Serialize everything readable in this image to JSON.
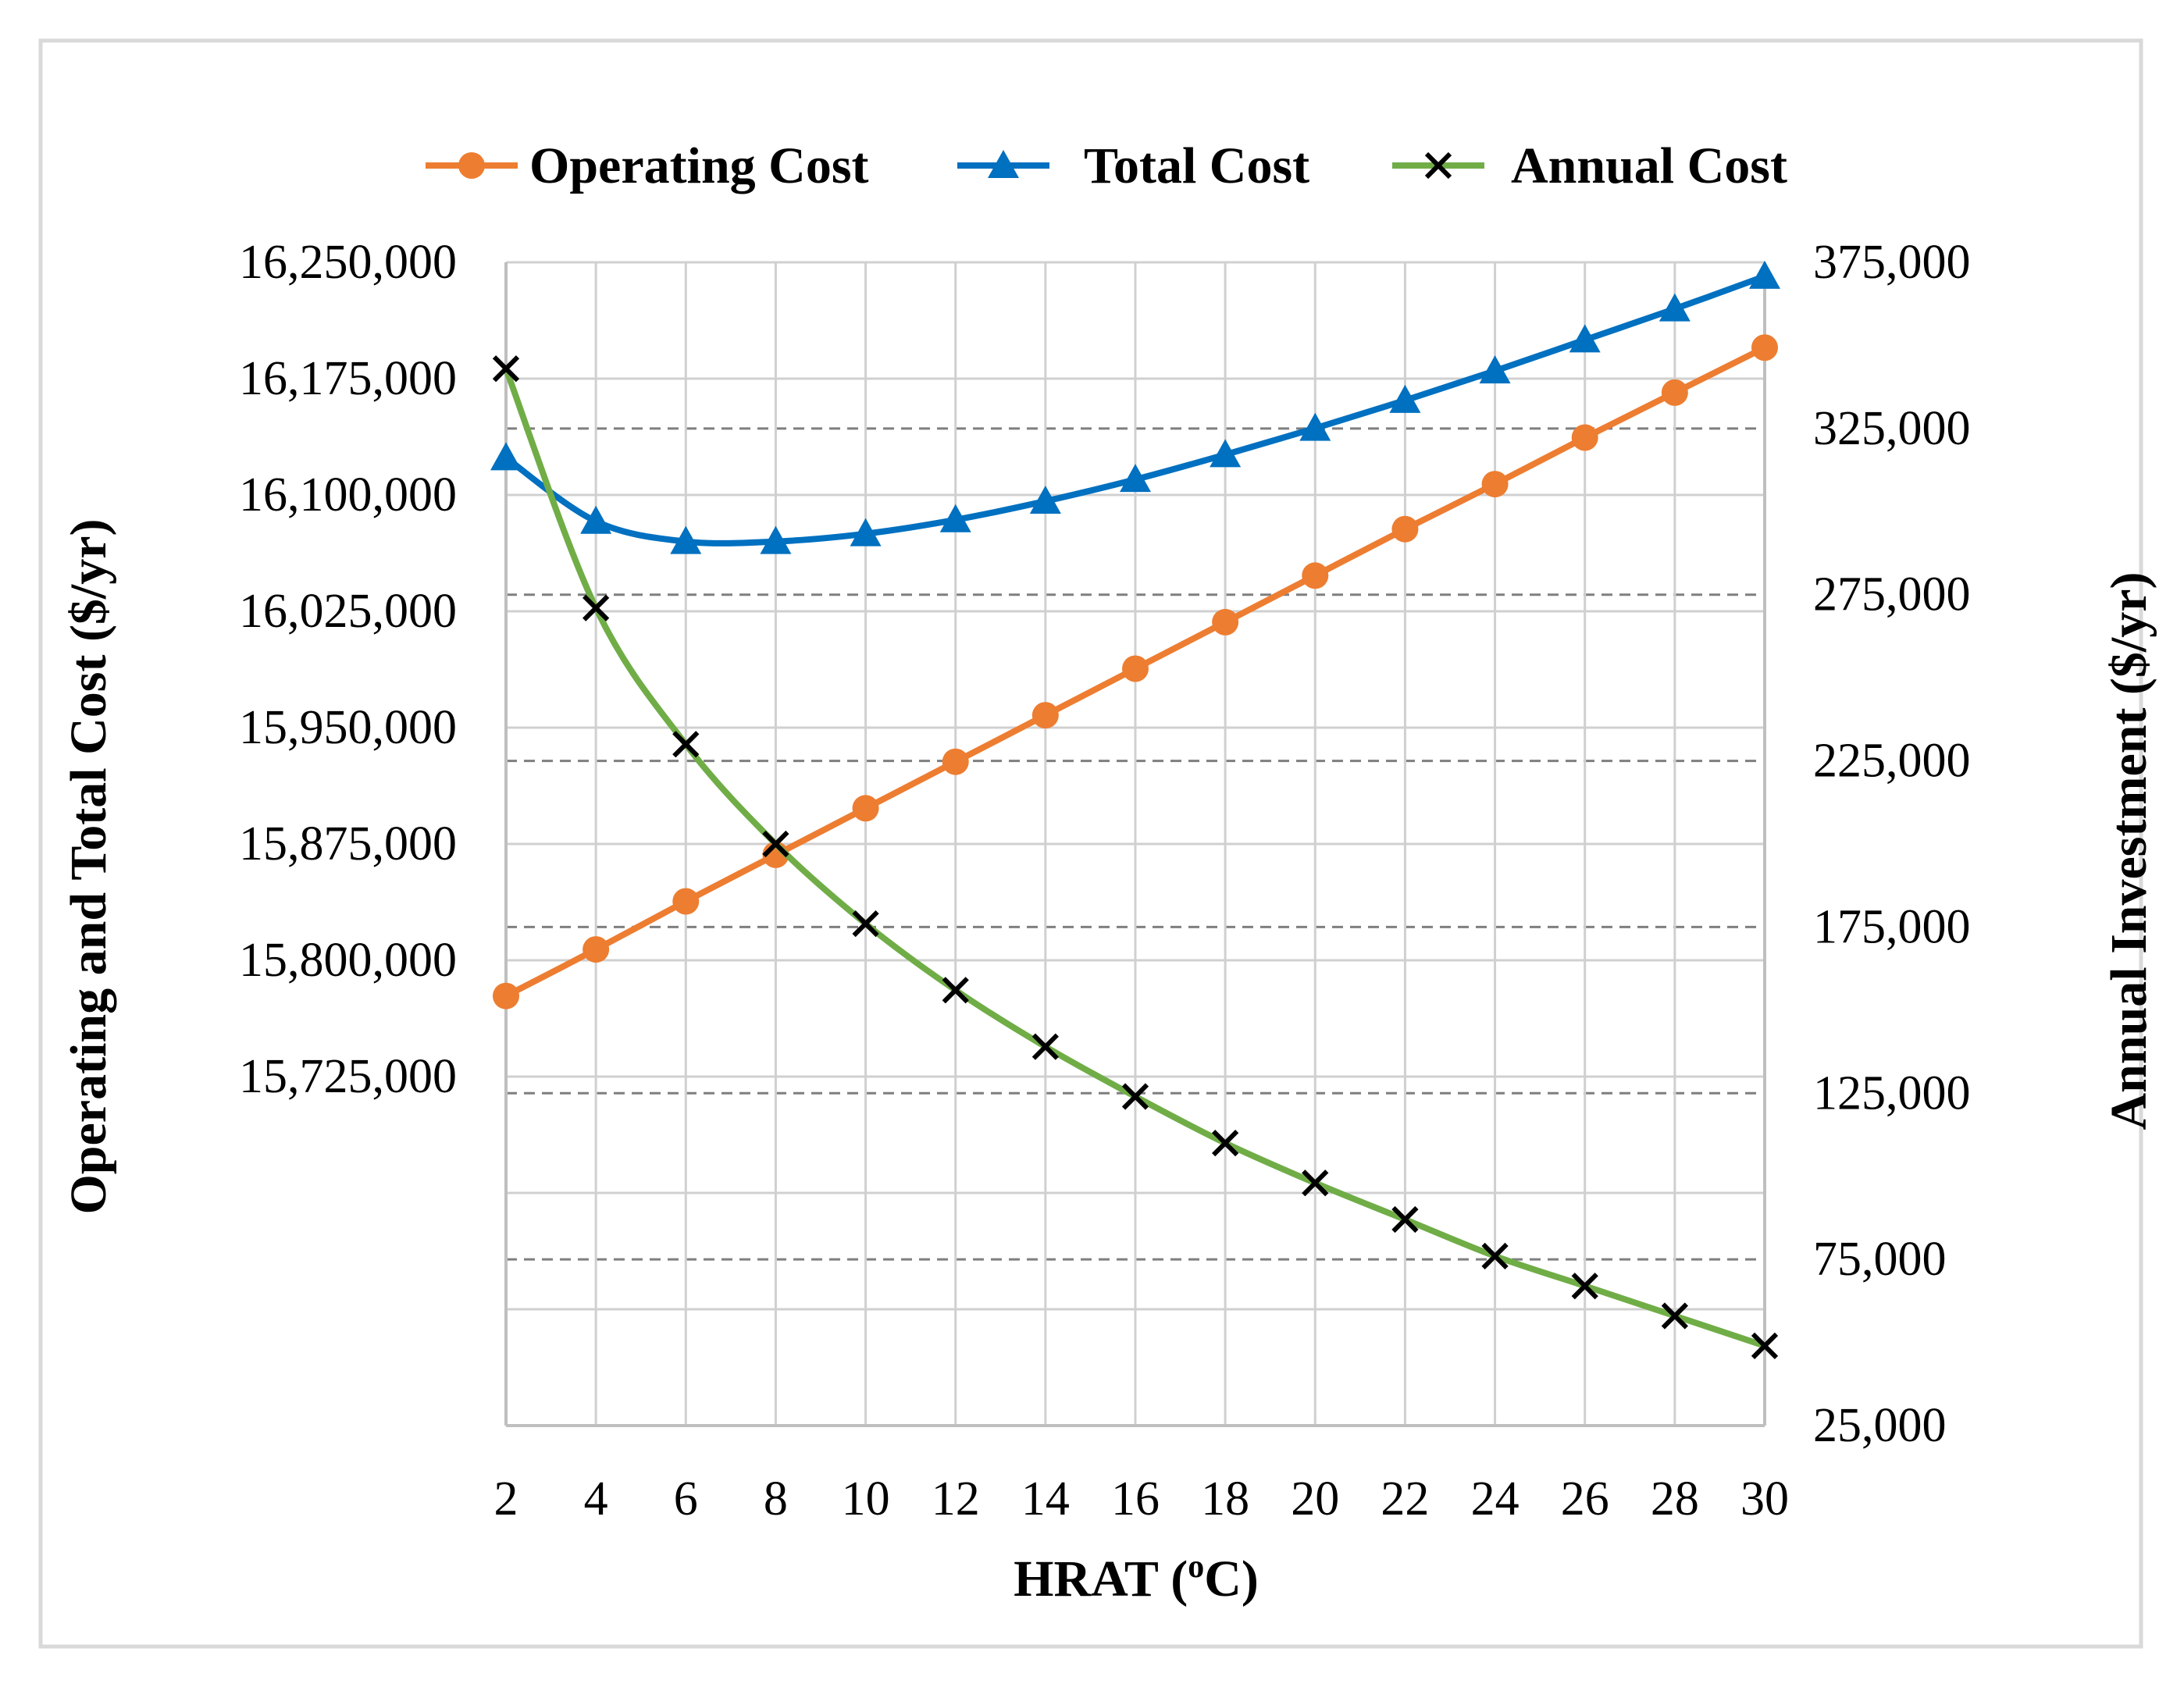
{
  "chart_data": {
    "type": "line",
    "title": "",
    "xlabel_main": "HRAT (",
    "xlabel_sup": "o",
    "xlabel_end": "C)",
    "ylabel_left": "Operating and Total Cost ($/yr)",
    "ylabel_right": "Annual Investment ($/yr)",
    "x": [
      2,
      4,
      6,
      8,
      10,
      12,
      14,
      16,
      18,
      20,
      22,
      24,
      26,
      28,
      30
    ],
    "x_tick_labels": [
      "2",
      "4",
      "6",
      "8",
      "10",
      "12",
      "14",
      "16",
      "18",
      "20",
      "22",
      "24",
      "26",
      "28",
      "30"
    ],
    "ylim_left": [
      15500000,
      16250000
    ],
    "ylim_right": [
      25000,
      375000
    ],
    "y_ticks_left": [
      15725000,
      15800000,
      15875000,
      15950000,
      16025000,
      16100000,
      16175000,
      16250000
    ],
    "y_tick_labels_left": [
      "15,725,000",
      "15,800,000",
      "15,875,000",
      "15,950,000",
      "16,025,000",
      "16,100,000",
      "16,175,000",
      "16,250,000"
    ],
    "y_ticks_right": [
      25000,
      75000,
      125000,
      175000,
      225000,
      275000,
      325000,
      375000
    ],
    "y_tick_labels_right": [
      "25,000",
      "75,000",
      "125,000",
      "175,000",
      "225,000",
      "275,000",
      "325,000",
      "375,000"
    ],
    "series": [
      {
        "name": "Operating Cost",
        "axis": "left",
        "color": "#ED7D31",
        "marker": "circle",
        "values": [
          15777000,
          15807000,
          15838000,
          15868000,
          15898000,
          15928000,
          15958000,
          15988000,
          16018000,
          16048000,
          16078000,
          16107000,
          16137000,
          16166000,
          16195000
        ]
      },
      {
        "name": "Total Cost",
        "axis": "left",
        "color": "#0070C0",
        "marker": "triangle",
        "values": [
          16124000,
          16083000,
          16070000,
          16070000,
          16075000,
          16084000,
          16096000,
          16110000,
          16126000,
          16143000,
          16161000,
          16180000,
          16200000,
          16220000,
          16241000
        ]
      },
      {
        "name": "Annual Cost",
        "axis": "right",
        "color": "#70AD47",
        "marker": "x",
        "values": [
          343000,
          271000,
          230000,
          200000,
          176000,
          156000,
          139000,
          124000,
          110000,
          98000,
          87000,
          76000,
          67000,
          58000,
          49000
        ]
      }
    ],
    "legend": "top"
  }
}
